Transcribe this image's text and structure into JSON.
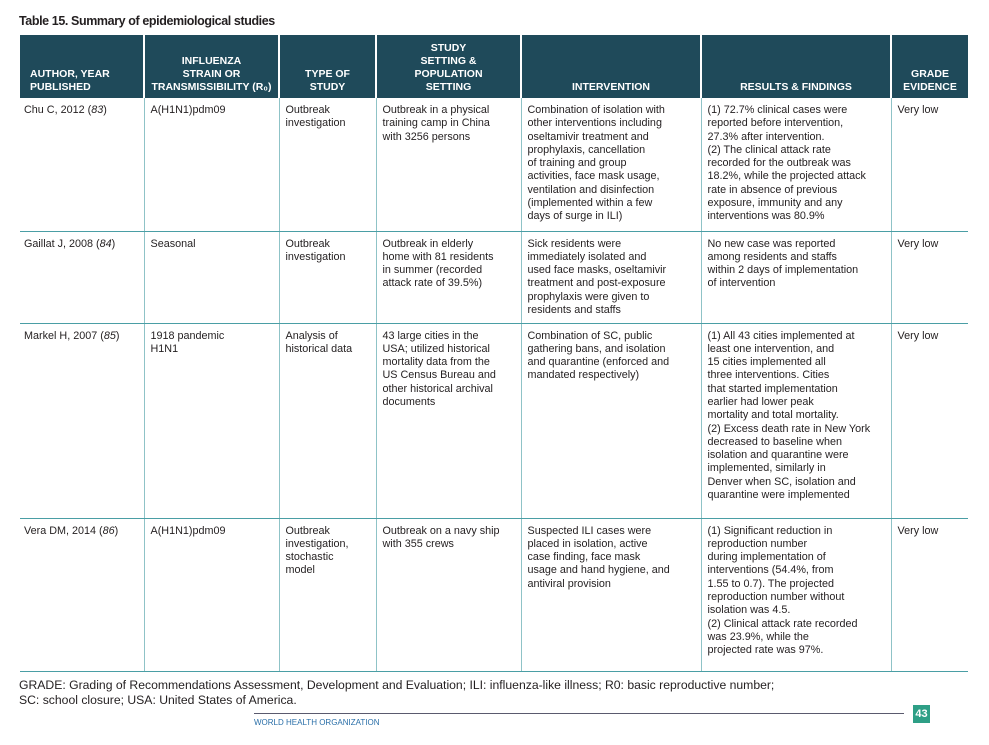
{
  "title": "Table 15. Summary of epidemiological studies",
  "headers": [
    "AUTHOR, YEAR\nPUBLISHED",
    "INFLUENZA\nSTRAIN OR\nTRANSMISSIBILITY (R₀)",
    "TYPE OF\nSTUDY",
    "STUDY\nSETTING &\nPOPULATION\nSETTING",
    "INTERVENTION",
    "RESULTS & FINDINGS",
    "GRADE\nEVIDENCE"
  ],
  "rows": [
    {
      "author": "Chu C, 2012 ",
      "ref": "83",
      "strain": "A(H1N1)pdm09",
      "type": "Outbreak\ninvestigation",
      "setting": "Outbreak in a physical\ntraining camp in China\nwith 3256 persons",
      "intervention": "Combination of isolation with\nother interventions including\noseltamivir treatment and\nprophylaxis, cancellation\nof training and group\nactivities, face mask usage,\nventilation and disinfection\n(implemented within a few\ndays of surge in ILI)",
      "results": "(1) 72.7% clinical cases were\nreported before intervention,\n27.3% after intervention.\n(2) The clinical attack rate\nrecorded for the outbreak was\n18.2%, while the projected attack\nrate in absence of previous\nexposure, immunity and any\ninterventions was 80.9%",
      "grade": "Very low"
    },
    {
      "author": "Gaillat J, 2008 ",
      "ref": "84",
      "strain": "Seasonal",
      "type": "Outbreak\ninvestigation",
      "setting": "Outbreak in elderly\nhome with 81 residents\nin summer (recorded\nattack rate of 39.5%)",
      "intervention": "Sick residents were\nimmediately isolated and\nused face masks, oseltamivir\ntreatment and post-exposure\nprophylaxis were given to\nresidents and staffs",
      "results": "No new case was reported\namong residents and staffs\nwithin 2 days of implementation\nof intervention",
      "grade": "Very low"
    },
    {
      "author": "Markel H, 2007 ",
      "ref": "85",
      "strain": "1918 pandemic\nH1N1",
      "type": "Analysis of\nhistorical data",
      "setting": "43 large cities in the\nUSA; utilized historical\nmortality data from the\nUS Census Bureau and\nother historical archival\ndocuments",
      "intervention": "Combination of SC, public\ngathering bans, and isolation\nand quarantine (enforced and\nmandated respectively)",
      "results": "(1) All 43 cities implemented at\n      least one intervention, and\n      15 cities implemented all\n      three interventions. Cities\n      that started implementation\n      earlier had lower peak\n      mortality and total mortality.\n(2) Excess death rate in New York\n      decreased to baseline when\n      isolation and quarantine were\n      implemented, similarly in\n      Denver when SC, isolation and\n      quarantine were implemented",
      "grade": "Very low"
    },
    {
      "author": "Vera DM, 2014 ",
      "ref": "86",
      "strain": "A(H1N1)pdm09",
      "type": "Outbreak\ninvestigation,\nstochastic\nmodel",
      "setting": "Outbreak on a navy ship\nwith 355 crews",
      "intervention": "Suspected ILI cases were\nplaced in isolation, active\ncase finding, face mask\nusage and hand hygiene, and\nantiviral provision",
      "results": "(1) Significant reduction in\n      reproduction number\n      during implementation of\n      interventions (54.4%, from\n      1.55 to 0.7). The projected\n      reproduction number without\n      isolation was 4.5.\n(2) Clinical attack rate recorded\n      was 23.9%, while the\n      projected rate was 97%.",
      "grade": "Very low"
    }
  ],
  "footnote": "GRADE: Grading of Recommendations Assessment, Development and Evaluation; ILI: influenza-like illness; R0: basic reproductive number;\nSC: school closure; USA: United States of America.",
  "footer": {
    "org": "WORLD HEALTH ORGANIZATION",
    "page": "43"
  },
  "colors": {
    "header_bg": "#1f4a5a",
    "rule": "#4a9ea5",
    "page_badge": "#2e9f86"
  }
}
